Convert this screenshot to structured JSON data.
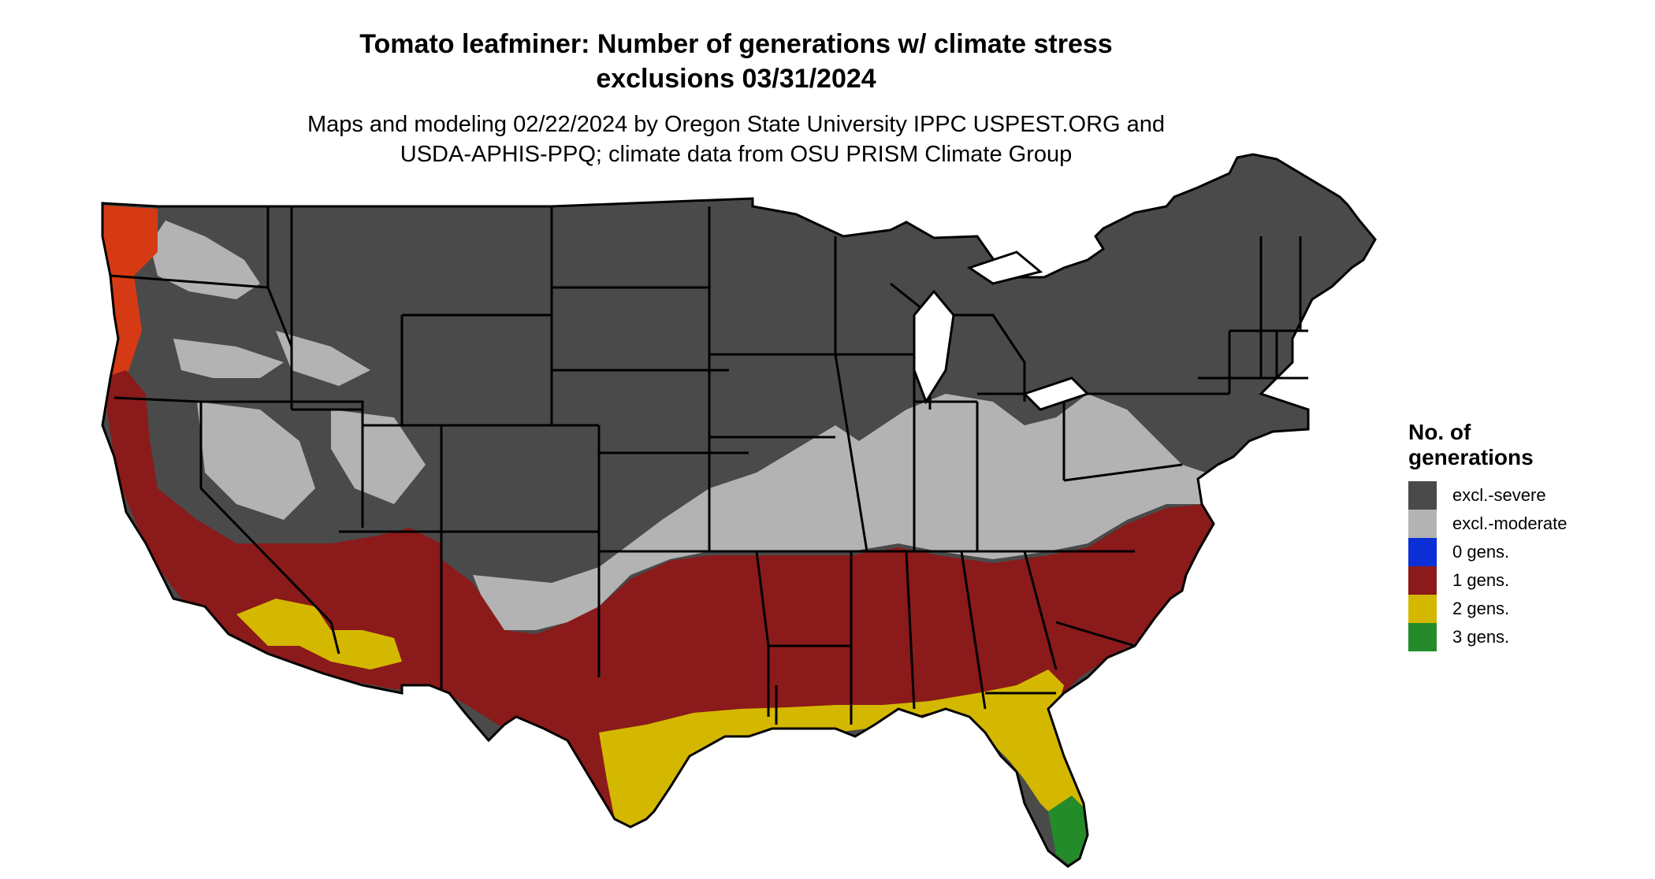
{
  "title": {
    "line1": "Tomato leafminer: Number of generations w/ climate stress",
    "line2": "exclusions 03/31/2024"
  },
  "subtitle": {
    "line1": "Maps and modeling 02/22/2024 by Oregon State University IPPC USPEST.ORG and",
    "line2": "USDA-APHIS-PPQ; climate data from OSU PRISM Climate Group"
  },
  "legend": {
    "title_line1": "No. of",
    "title_line2": "generations",
    "items": [
      {
        "label": "excl.-severe",
        "color": "#4a4a4a"
      },
      {
        "label": "excl.-moderate",
        "color": "#b3b3b3"
      },
      {
        "label": "0 gens.",
        "color": "#0a2fd6"
      },
      {
        "label": "1 gens.",
        "color": "#8b1a1a"
      },
      {
        "label": "2 gens.",
        "color": "#d4b800"
      },
      {
        "label": "3 gens.",
        "color": "#238b2a"
      }
    ]
  },
  "map": {
    "region": "contiguous United States",
    "colors": {
      "severe": "#4a4a4a",
      "moderate": "#b3b3b3",
      "zero": "#0a2fd6",
      "one": "#8b1a1a",
      "two": "#d4b800",
      "three": "#238b2a",
      "hot_one": "#d63a14",
      "border": "#000000"
    }
  }
}
